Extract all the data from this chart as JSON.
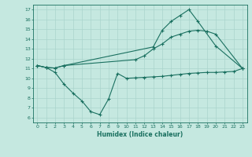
{
  "xlabel": "Humidex (Indice chaleur)",
  "ylabel": "",
  "xlim": [
    -0.5,
    23.5
  ],
  "ylim": [
    5.5,
    17.5
  ],
  "yticks": [
    6,
    7,
    8,
    9,
    10,
    11,
    12,
    13,
    14,
    15,
    16,
    17
  ],
  "xticks": [
    0,
    1,
    2,
    3,
    4,
    5,
    6,
    7,
    8,
    9,
    10,
    11,
    12,
    13,
    14,
    15,
    16,
    17,
    18,
    19,
    20,
    21,
    22,
    23
  ],
  "bg_color": "#c5e8e0",
  "line_color": "#1a7060",
  "grid_color": "#aad4cc",
  "line1_x": [
    0,
    1,
    2,
    3,
    13,
    14,
    15,
    16,
    17,
    18,
    20,
    23
  ],
  "line1_y": [
    11.3,
    11.1,
    11.05,
    11.3,
    13.2,
    14.9,
    15.8,
    16.4,
    17.0,
    15.8,
    13.3,
    11.0
  ],
  "line2_x": [
    0,
    1,
    2,
    3,
    11,
    12,
    13,
    14,
    15,
    16,
    17,
    18,
    19,
    20,
    23
  ],
  "line2_y": [
    11.3,
    11.1,
    11.05,
    11.3,
    11.9,
    12.3,
    13.0,
    13.5,
    14.2,
    14.5,
    14.8,
    14.9,
    14.8,
    14.5,
    11.0
  ],
  "line3_x": [
    0,
    1,
    2,
    3,
    4,
    5,
    6,
    7,
    8,
    9,
    10,
    11,
    12,
    13,
    14,
    15,
    16,
    17,
    18,
    19,
    20,
    21,
    22,
    23
  ],
  "line3_y": [
    11.3,
    11.1,
    10.6,
    9.4,
    8.5,
    7.7,
    6.6,
    6.3,
    7.9,
    10.5,
    10.0,
    10.05,
    10.1,
    10.15,
    10.2,
    10.3,
    10.4,
    10.5,
    10.55,
    10.6,
    10.6,
    10.65,
    10.7,
    11.0
  ]
}
